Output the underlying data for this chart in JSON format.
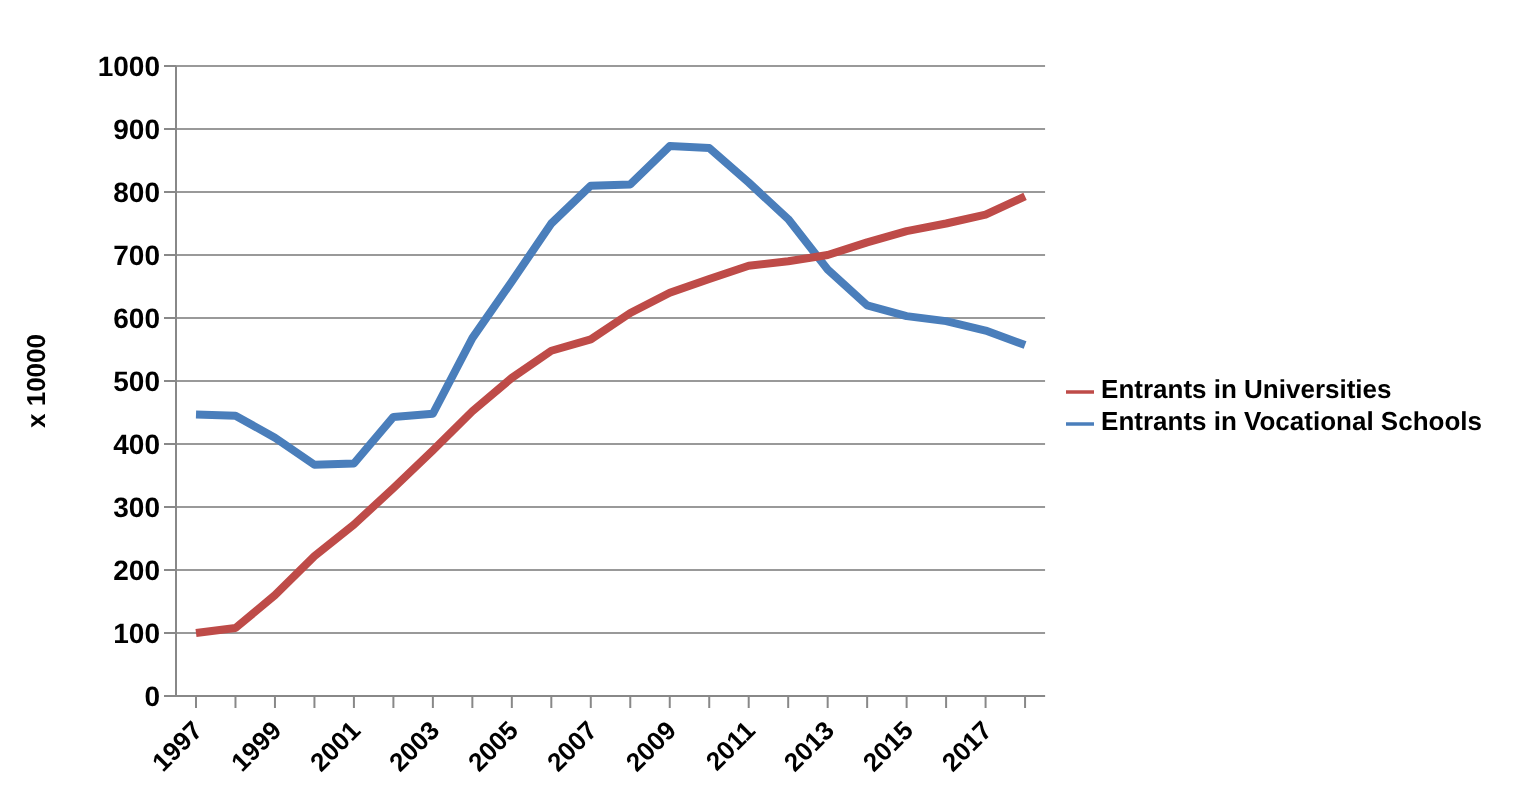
{
  "chart_data": {
    "type": "line",
    "ylabel": "x 10000",
    "categories": [
      "1997",
      null,
      "1999",
      null,
      "2001",
      null,
      "2003",
      null,
      "2005",
      null,
      "2007",
      null,
      "2009",
      null,
      "2011",
      null,
      "2013",
      null,
      "2015",
      null,
      "2017",
      null
    ],
    "series": [
      {
        "name": "Entrants in Vocational Schools",
        "color": "#4a7ebb",
        "values": [
          447,
          445,
          410,
          367,
          369,
          443,
          448,
          568,
          658,
          750,
          810,
          812,
          873,
          870,
          815,
          757,
          677,
          620,
          603,
          595,
          580,
          557
        ]
      },
      {
        "name": "Entrants in Universities",
        "color": "#be4b48",
        "values": [
          100,
          108,
          160,
          222,
          272,
          330,
          390,
          452,
          505,
          548,
          566,
          608,
          640,
          662,
          683,
          690,
          700,
          720,
          738,
          750,
          764,
          793
        ]
      }
    ],
    "ylim": [
      0,
      1000
    ],
    "yticks": [
      0,
      100,
      200,
      300,
      400,
      500,
      600,
      700,
      800,
      900,
      1000
    ],
    "grid": "y",
    "legend": "right",
    "marker": "none",
    "line_style": "solid"
  }
}
